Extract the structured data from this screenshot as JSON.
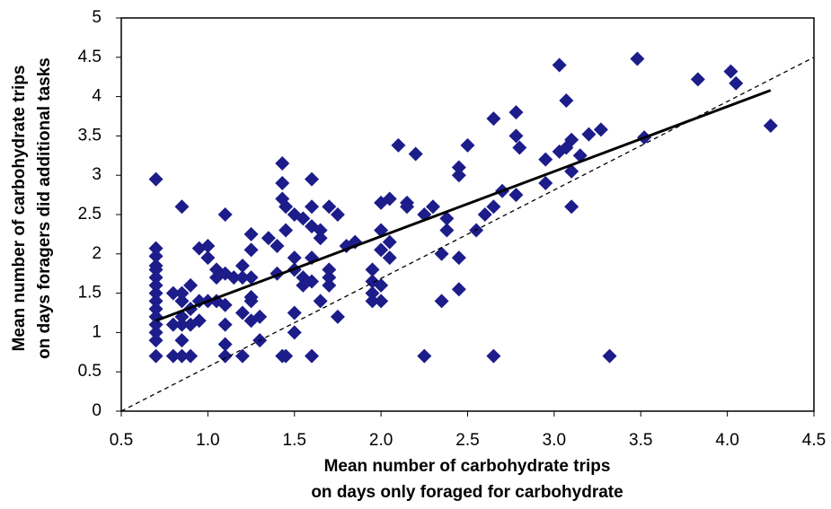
{
  "chart_data": {
    "type": "scatter",
    "xlabel": [
      "Mean number of carbohydrate trips",
      "on days only foraged for carbohydrate"
    ],
    "ylabel": [
      "Mean number of carbohydrate trips",
      "on days foragers did additional tasks"
    ],
    "xlim": [
      0.5,
      4.5
    ],
    "xticks": [
      0.5,
      {
        "value": 1,
        "label": "1.0"
      },
      1.5,
      {
        "value": 2,
        "label": "2.0"
      },
      2.5,
      {
        "value": 3,
        "label": "3.0"
      },
      3.5,
      {
        "value": 4,
        "label": "4.0"
      },
      4.5
    ],
    "ylim": [
      0,
      5
    ],
    "yticks": [
      0,
      0.5,
      1,
      1.5,
      2,
      2.5,
      3,
      3.5,
      4,
      4.5,
      5
    ],
    "series": [
      {
        "type": "scatter",
        "color": "#1c1c8a",
        "x": [
          0.7,
          0.7,
          0.7,
          0.7,
          0.7,
          0.7,
          0.7,
          0.7,
          0.7,
          0.7,
          0.7,
          0.7,
          0.7,
          0.7,
          0.7,
          0.8,
          0.8,
          0.8,
          0.85,
          0.85,
          0.85,
          0.85,
          0.85,
          0.85,
          0.85,
          0.9,
          0.9,
          0.9,
          0.9,
          0.95,
          0.95,
          0.95,
          1.0,
          1.0,
          1.0,
          1.05,
          1.05,
          1.05,
          1.1,
          1.1,
          1.1,
          1.1,
          1.1,
          1.1,
          1.15,
          1.2,
          1.2,
          1.2,
          1.2,
          1.25,
          1.25,
          1.25,
          1.25,
          1.25,
          1.25,
          1.3,
          1.3,
          1.35,
          1.4,
          1.4,
          1.43,
          1.43,
          1.43,
          1.43,
          1.45,
          1.45,
          1.45,
          1.5,
          1.5,
          1.5,
          1.5,
          1.5,
          1.55,
          1.55,
          1.55,
          1.6,
          1.6,
          1.6,
          1.6,
          1.6,
          1.6,
          1.65,
          1.65,
          1.65,
          1.7,
          1.7,
          1.7,
          1.7,
          1.75,
          1.75,
          1.8,
          1.85,
          1.95,
          1.95,
          1.95,
          1.95,
          2.0,
          2.0,
          2.0,
          2.0,
          2.0,
          2.05,
          2.05,
          2.05,
          2.1,
          2.15,
          2.15,
          2.2,
          2.25,
          2.25,
          2.3,
          2.35,
          2.35,
          2.38,
          2.38,
          2.45,
          2.45,
          2.45,
          2.45,
          2.5,
          2.55,
          2.6,
          2.65,
          2.65,
          2.65,
          2.7,
          2.78,
          2.78,
          2.78,
          2.8,
          2.95,
          2.95,
          3.03,
          3.03,
          3.07,
          3.07,
          3.1,
          3.1,
          3.1,
          3.15,
          3.2,
          3.27,
          3.32,
          3.48,
          3.52,
          3.83,
          4.02,
          4.05,
          4.25
        ],
        "values": [
          2.95,
          2.07,
          1.97,
          1.85,
          1.8,
          1.7,
          1.6,
          1.5,
          1.4,
          1.3,
          1.2,
          1.1,
          1.0,
          0.9,
          0.7,
          1.5,
          1.1,
          0.7,
          2.6,
          1.5,
          1.4,
          1.2,
          1.1,
          0.9,
          0.7,
          1.3,
          1.1,
          0.7,
          1.6,
          2.07,
          1.4,
          1.15,
          2.1,
          1.95,
          1.4,
          1.8,
          1.7,
          1.4,
          2.5,
          1.75,
          1.35,
          1.1,
          0.85,
          0.7,
          1.7,
          1.85,
          1.7,
          1.25,
          0.7,
          2.25,
          2.05,
          1.7,
          1.45,
          1.4,
          1.15,
          1.2,
          0.9,
          2.2,
          2.1,
          1.75,
          3.15,
          2.9,
          2.7,
          0.7,
          2.6,
          2.3,
          0.7,
          2.5,
          1.95,
          1.8,
          1.25,
          1.0,
          2.45,
          1.7,
          1.6,
          2.95,
          2.6,
          2.35,
          1.95,
          1.65,
          0.7,
          2.3,
          2.2,
          1.4,
          2.6,
          1.8,
          1.7,
          1.6,
          2.5,
          1.2,
          2.1,
          2.15,
          1.8,
          1.65,
          1.5,
          1.4,
          2.65,
          2.3,
          2.05,
          1.6,
          1.4,
          2.7,
          2.15,
          1.95,
          3.38,
          2.65,
          2.6,
          3.27,
          2.5,
          0.7,
          2.6,
          1.4,
          2.0,
          2.3,
          2.45,
          3.1,
          3.0,
          1.95,
          1.55,
          3.38,
          2.3,
          2.5,
          3.72,
          2.6,
          0.7,
          2.8,
          3.8,
          3.5,
          2.75,
          3.35,
          2.9,
          3.2,
          4.4,
          3.3,
          3.95,
          3.35,
          3.45,
          3.05,
          2.6,
          3.25,
          3.52,
          3.58,
          0.7,
          4.48,
          3.48,
          4.22,
          4.32,
          4.17,
          3.63
        ]
      },
      {
        "type": "line",
        "color": "#000000",
        "style": "solid",
        "x": [
          0.7,
          4.25
        ],
        "values": [
          1.15,
          4.08
        ]
      },
      {
        "type": "line",
        "color": "#000000",
        "style": "dashed",
        "x": [
          0.5,
          4.5
        ],
        "values": [
          0,
          4.5
        ]
      }
    ]
  }
}
